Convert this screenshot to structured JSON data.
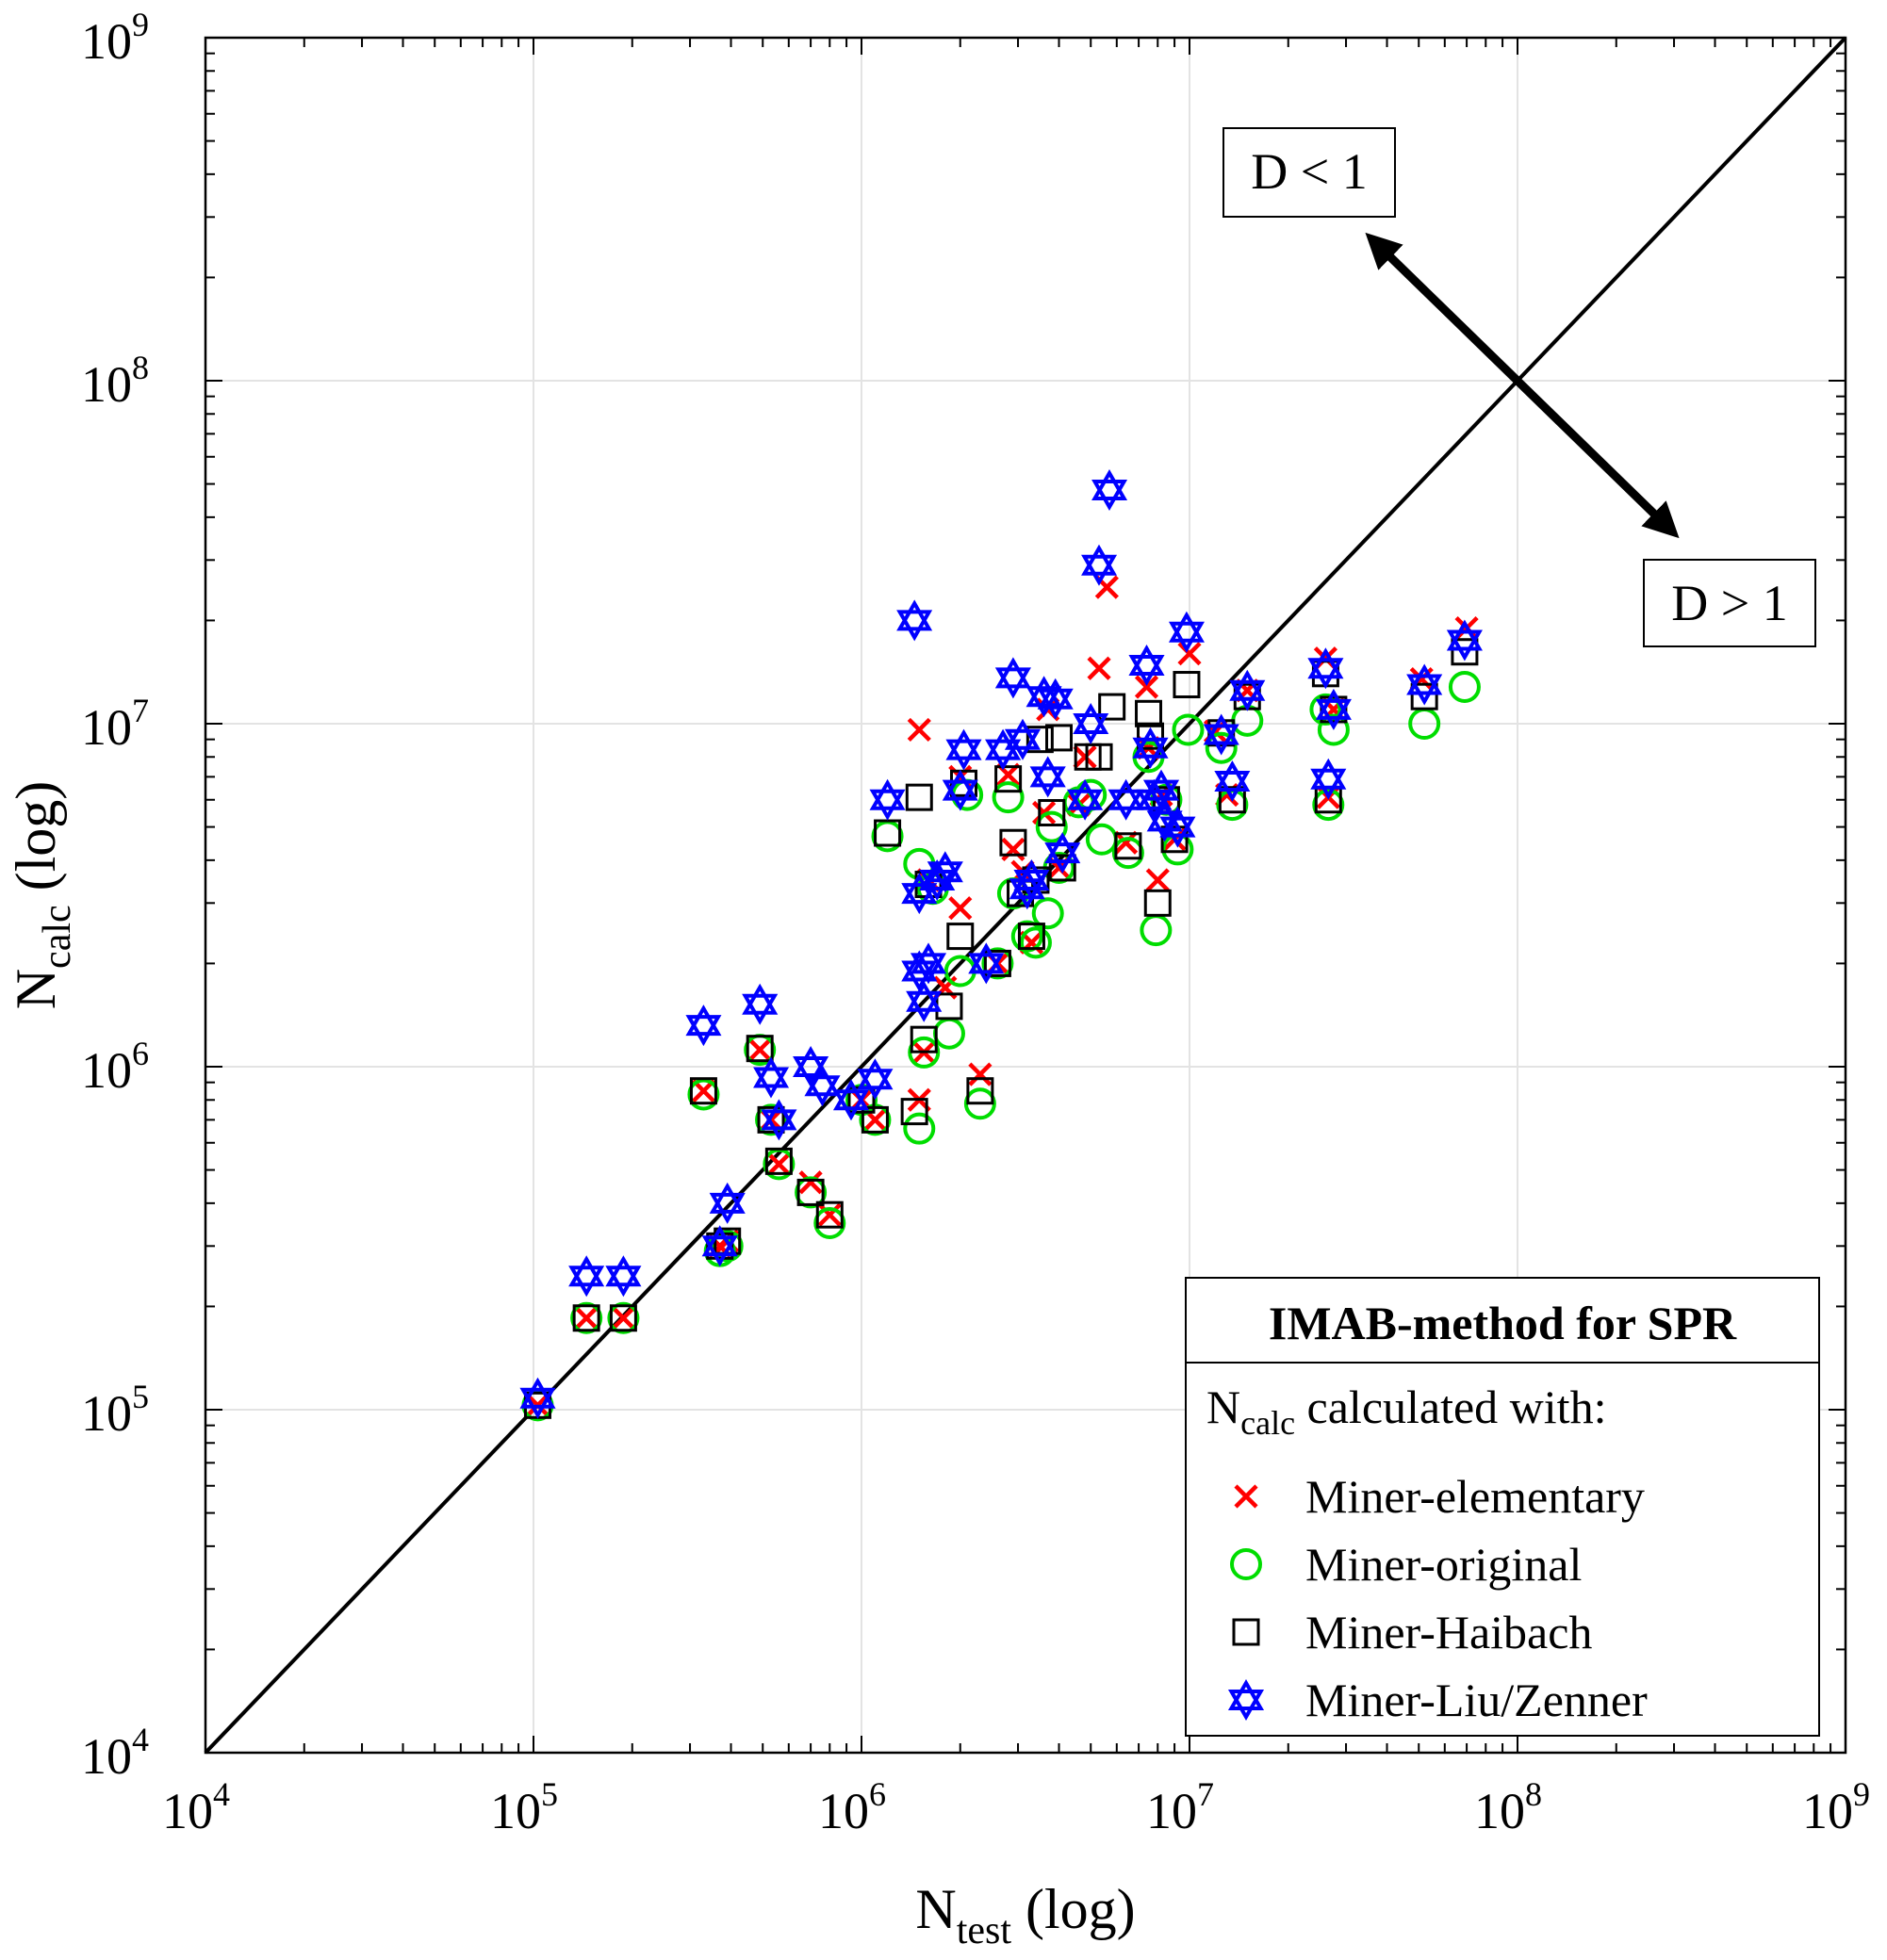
{
  "chart_data": {
    "type": "scatter",
    "x_scale": "log",
    "y_scale": "log",
    "xlim": [
      10000,
      1000000000
    ],
    "ylim": [
      10000,
      1000000000
    ],
    "grid": true,
    "x_ticks": [
      "10",
      "10",
      "10",
      "10",
      "10",
      "10"
    ],
    "x_tick_exps": [
      "4",
      "5",
      "6",
      "7",
      "8",
      "9"
    ],
    "y_ticks": [
      "10",
      "10",
      "10",
      "10",
      "10",
      "10"
    ],
    "y_tick_exps": [
      "4",
      "5",
      "6",
      "7",
      "8",
      "9"
    ],
    "xlabel": {
      "main": "N",
      "sub": "test",
      "suffix": " (log)"
    },
    "ylabel": {
      "main": "N",
      "sub": "calc",
      "suffix": " (log)"
    },
    "annotations": {
      "upper": "D < 1",
      "lower": "D > 1"
    },
    "reference_line": {
      "x": [
        10000,
        1000000000
      ],
      "y": [
        10000,
        1000000000
      ]
    },
    "legend": {
      "position": "bottom-right",
      "title": "IMAB-method for SPR",
      "subtitle_main": "N",
      "subtitle_sub": "calc",
      "subtitle_rest": " calculated with:"
    },
    "series": [
      {
        "name": "Miner-elementary",
        "marker": "x",
        "color": "#ff0000",
        "points": [
          [
            103000,
            103000
          ],
          [
            145000,
            185000
          ],
          [
            188000,
            185000
          ],
          [
            330000,
            850000
          ],
          [
            370000,
            300000
          ],
          [
            390000,
            310000
          ],
          [
            490000,
            1120000
          ],
          [
            530000,
            700000
          ],
          [
            560000,
            520000
          ],
          [
            700000,
            460000
          ],
          [
            800000,
            370000
          ],
          [
            1000000,
            800000
          ],
          [
            1100000,
            700000
          ],
          [
            1500000,
            800000
          ],
          [
            1500000,
            9600000
          ],
          [
            1550000,
            1100000
          ],
          [
            1600000,
            3500000
          ],
          [
            1800000,
            1700000
          ],
          [
            2000000,
            2900000
          ],
          [
            2000000,
            7000000
          ],
          [
            2300000,
            950000
          ],
          [
            2600000,
            2000000
          ],
          [
            2800000,
            7100000
          ],
          [
            2900000,
            4300000
          ],
          [
            3100000,
            3700000
          ],
          [
            3300000,
            2300000
          ],
          [
            3600000,
            5500000
          ],
          [
            3700000,
            11000000
          ],
          [
            4000000,
            3800000
          ],
          [
            4600000,
            5800000
          ],
          [
            4800000,
            8000000
          ],
          [
            5300000,
            14500000
          ],
          [
            5600000,
            25000000
          ],
          [
            6400000,
            4500000
          ],
          [
            7400000,
            12800000
          ],
          [
            7500000,
            8500000
          ],
          [
            8000000,
            3500000
          ],
          [
            8200000,
            6200000
          ],
          [
            9000000,
            4600000
          ],
          [
            10000000,
            16000000
          ],
          [
            12000000,
            9500000
          ],
          [
            13000000,
            6200000
          ],
          [
            15000000,
            12500000
          ],
          [
            26000000,
            15500000
          ],
          [
            26500000,
            6100000
          ],
          [
            27500000,
            11000000
          ],
          [
            51000000,
            13500000
          ],
          [
            70000000,
            19000000
          ]
        ]
      },
      {
        "name": "Miner-original",
        "marker": "o",
        "color": "#00dd00",
        "points": [
          [
            103000,
            103000
          ],
          [
            145000,
            185000
          ],
          [
            188000,
            185000
          ],
          [
            330000,
            830000
          ],
          [
            370000,
            290000
          ],
          [
            390000,
            300000
          ],
          [
            490000,
            1120000
          ],
          [
            530000,
            700000
          ],
          [
            560000,
            520000
          ],
          [
            700000,
            430000
          ],
          [
            800000,
            350000
          ],
          [
            1000000,
            800000
          ],
          [
            1100000,
            700000
          ],
          [
            1200000,
            4700000
          ],
          [
            1500000,
            660000
          ],
          [
            1500000,
            3900000
          ],
          [
            1550000,
            1100000
          ],
          [
            1650000,
            3300000
          ],
          [
            1850000,
            1250000
          ],
          [
            2000000,
            1900000
          ],
          [
            2100000,
            6200000
          ],
          [
            2300000,
            780000
          ],
          [
            2600000,
            2000000
          ],
          [
            2800000,
            6100000
          ],
          [
            2900000,
            3200000
          ],
          [
            3200000,
            2400000
          ],
          [
            3400000,
            2300000
          ],
          [
            3700000,
            2800000
          ],
          [
            3800000,
            5000000
          ],
          [
            4000000,
            3800000
          ],
          [
            4600000,
            5900000
          ],
          [
            5000000,
            6200000
          ],
          [
            5400000,
            4600000
          ],
          [
            6500000,
            4200000
          ],
          [
            7500000,
            8000000
          ],
          [
            7900000,
            2500000
          ],
          [
            8500000,
            6000000
          ],
          [
            9200000,
            4300000
          ],
          [
            9900000,
            9600000
          ],
          [
            12500000,
            8500000
          ],
          [
            13500000,
            5800000
          ],
          [
            15000000,
            10200000
          ],
          [
            26000000,
            11000000
          ],
          [
            26500000,
            5800000
          ],
          [
            27500000,
            9600000
          ],
          [
            52000000,
            10000000
          ],
          [
            69000000,
            12800000
          ]
        ]
      },
      {
        "name": "Miner-Haibach",
        "marker": "s",
        "color": "#000000",
        "points": [
          [
            103000,
            103000
          ],
          [
            145000,
            185000
          ],
          [
            188000,
            185000
          ],
          [
            330000,
            850000
          ],
          [
            370000,
            300000
          ],
          [
            390000,
            310000
          ],
          [
            490000,
            1130000
          ],
          [
            530000,
            700000
          ],
          [
            560000,
            530000
          ],
          [
            700000,
            430000
          ],
          [
            800000,
            370000
          ],
          [
            1000000,
            800000
          ],
          [
            1100000,
            700000
          ],
          [
            1200000,
            4800000
          ],
          [
            1450000,
            740000
          ],
          [
            1500000,
            6100000
          ],
          [
            1550000,
            1200000
          ],
          [
            1600000,
            3400000
          ],
          [
            1850000,
            1500000
          ],
          [
            2000000,
            2400000
          ],
          [
            2050000,
            6700000
          ],
          [
            2300000,
            850000
          ],
          [
            2600000,
            2000000
          ],
          [
            2800000,
            6900000
          ],
          [
            2900000,
            4500000
          ],
          [
            3050000,
            3200000
          ],
          [
            3300000,
            2400000
          ],
          [
            3400000,
            3500000
          ],
          [
            3500000,
            9000000
          ],
          [
            3800000,
            5500000
          ],
          [
            4000000,
            9100000
          ],
          [
            4100000,
            3800000
          ],
          [
            4900000,
            8000000
          ],
          [
            5300000,
            8000000
          ],
          [
            5800000,
            11200000
          ],
          [
            6500000,
            4400000
          ],
          [
            7500000,
            10700000
          ],
          [
            7600000,
            9200000
          ],
          [
            8000000,
            3000000
          ],
          [
            8500000,
            6000000
          ],
          [
            9000000,
            4600000
          ],
          [
            9800000,
            13000000
          ],
          [
            12500000,
            9400000
          ],
          [
            13500000,
            6000000
          ],
          [
            15000000,
            12000000
          ],
          [
            26000000,
            14000000
          ],
          [
            26500000,
            6000000
          ],
          [
            27500000,
            11000000
          ],
          [
            52000000,
            12000000
          ],
          [
            69000000,
            16200000
          ]
        ]
      },
      {
        "name": "Miner-Liu/Zenner",
        "marker": "hexagram",
        "color": "#0000ff",
        "points": [
          [
            103000,
            108000
          ],
          [
            145000,
            245000
          ],
          [
            188000,
            245000
          ],
          [
            330000,
            1320000
          ],
          [
            370000,
            300000
          ],
          [
            390000,
            400000
          ],
          [
            490000,
            1520000
          ],
          [
            530000,
            930000
          ],
          [
            560000,
            700000
          ],
          [
            700000,
            1000000
          ],
          [
            760000,
            880000
          ],
          [
            930000,
            800000
          ],
          [
            1100000,
            920000
          ],
          [
            1200000,
            6000000
          ],
          [
            1450000,
            20000000
          ],
          [
            1500000,
            1900000
          ],
          [
            1500000,
            3200000
          ],
          [
            1550000,
            1550000
          ],
          [
            1600000,
            2000000
          ],
          [
            1700000,
            3500000
          ],
          [
            1800000,
            3700000
          ],
          [
            2000000,
            6400000
          ],
          [
            2050000,
            8400000
          ],
          [
            2400000,
            2000000
          ],
          [
            2700000,
            8400000
          ],
          [
            2900000,
            13600000
          ],
          [
            3100000,
            9000000
          ],
          [
            3200000,
            3300000
          ],
          [
            3300000,
            3500000
          ],
          [
            3600000,
            12000000
          ],
          [
            3700000,
            7000000
          ],
          [
            3900000,
            11800000
          ],
          [
            4100000,
            4200000
          ],
          [
            4800000,
            6000000
          ],
          [
            5000000,
            10000000
          ],
          [
            5300000,
            29000000
          ],
          [
            5700000,
            48000000
          ],
          [
            6400000,
            6000000
          ],
          [
            7400000,
            14800000
          ],
          [
            7600000,
            8500000
          ],
          [
            7800000,
            6000000
          ],
          [
            8200000,
            6400000
          ],
          [
            8400000,
            5200000
          ],
          [
            9200000,
            5000000
          ],
          [
            9800000,
            18500000
          ],
          [
            12500000,
            9300000
          ],
          [
            13500000,
            6800000
          ],
          [
            15000000,
            12500000
          ],
          [
            26000000,
            14500000
          ],
          [
            26500000,
            6900000
          ],
          [
            27500000,
            11000000
          ],
          [
            52000000,
            13000000
          ],
          [
            69000000,
            17500000
          ]
        ]
      }
    ]
  }
}
